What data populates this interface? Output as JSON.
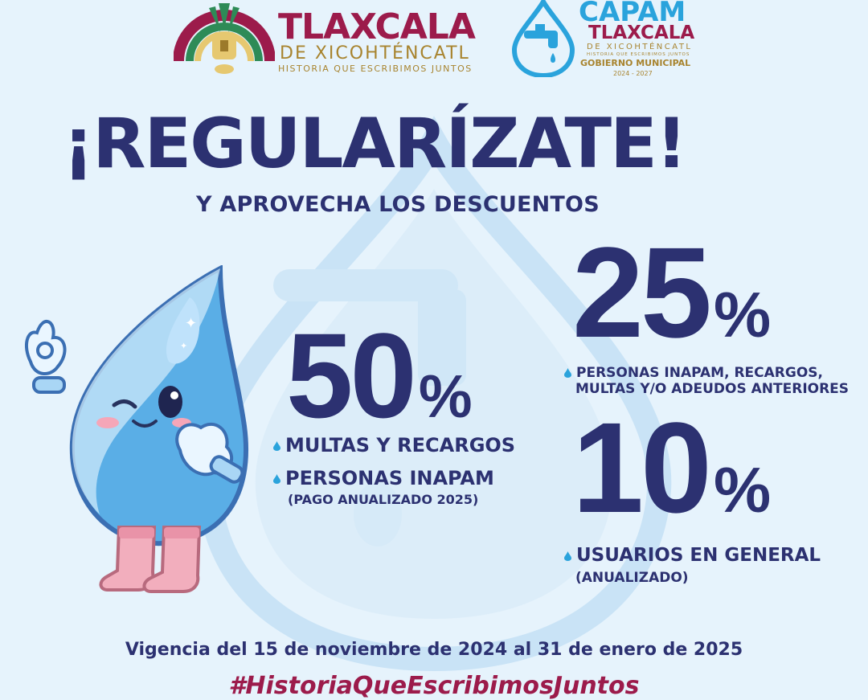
{
  "colors": {
    "background": "#e6f3fc",
    "navy": "#2c3171",
    "maroon": "#9c1b4b",
    "gold": "#a8842f",
    "sky": "#2aa3dc"
  },
  "logos": {
    "tlaxcala": {
      "name": "TLAXCALA",
      "subtitle": "DE XICOHTÉNCATL",
      "tagline": "HISTORIA QUE ESCRIBIMOS JUNTOS",
      "icon": "tlaxcala-crest-icon"
    },
    "capam": {
      "name": "CAPAM",
      "place": "TLAXCALA",
      "subtitle": "DE XICOHTÉNCATL",
      "tagline": "HISTORIA QUE ESCRIBIMOS JUNTOS",
      "government": "GOBIERNO MUNICIPAL",
      "years": "2024 - 2027",
      "icon": "water-drop-faucet-icon"
    }
  },
  "headline": "¡REGULARÍZATE!",
  "subheadline": "Y APROVECHA LOS DESCUENTOS",
  "discounts": {
    "fifty": {
      "value": "50",
      "percent_sign": "%",
      "items": [
        "MULTAS Y RECARGOS",
        "PERSONAS INAPAM"
      ],
      "note": "(PAGO ANUALIZADO 2025)"
    },
    "twentyfive": {
      "value": "25",
      "percent_sign": "%",
      "line1": "PERSONAS INAPAM, RECARGOS,",
      "line2": "MULTAS Y/O ADEUDOS ANTERIORES"
    },
    "ten": {
      "value": "10",
      "percent_sign": "%",
      "item": "USUARIOS EN GENERAL",
      "note": "(ANUALIZADO)"
    }
  },
  "validity": "Vigencia del 15 de noviembre de 2024 al 31 de enero de 2025",
  "hashtag": "#HistoriaQueEscribimosJuntos",
  "mascot": "water-drop-mascot"
}
